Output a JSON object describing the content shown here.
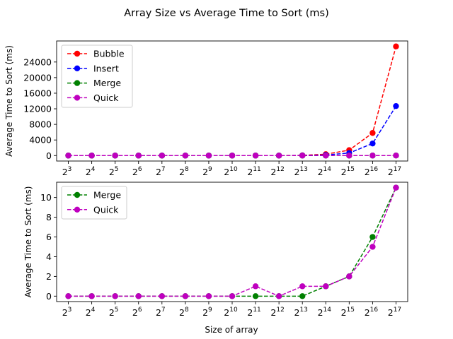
{
  "figure": {
    "title": "Array Size vs Average Time to Sort (ms)",
    "xlabel": "Size of array"
  },
  "colors": {
    "Bubble": "#ff0000",
    "Insert": "#0000ff",
    "Merge": "#008000",
    "Quick": "#bf00bf"
  },
  "chart_data": [
    {
      "type": "line",
      "line_style": "dashed",
      "marker": "circle",
      "categories": [
        "2^3",
        "2^4",
        "2^5",
        "2^6",
        "2^7",
        "2^8",
        "2^9",
        "2^10",
        "2^11",
        "2^12",
        "2^13",
        "2^14",
        "2^15",
        "2^16",
        "2^17"
      ],
      "x_exponents": [
        3,
        4,
        5,
        6,
        7,
        8,
        9,
        10,
        11,
        12,
        13,
        14,
        15,
        16,
        17
      ],
      "ylabel": "Average Time to Sort (ms)",
      "ylim": [
        -1400,
        29400
      ],
      "yticks": [
        0,
        4000,
        8000,
        12000,
        16000,
        20000,
        24000
      ],
      "legend_position": "top-left",
      "grid": false,
      "series": [
        {
          "name": "Bubble",
          "values": [
            0,
            0,
            0,
            0,
            0,
            0,
            0,
            0,
            0,
            0,
            50,
            350,
            1400,
            5800,
            28000
          ]
        },
        {
          "name": "Insert",
          "values": [
            0,
            0,
            0,
            0,
            0,
            0,
            0,
            0,
            0,
            0,
            30,
            150,
            650,
            3100,
            12700
          ]
        },
        {
          "name": "Merge",
          "values": [
            0,
            0,
            0,
            0,
            0,
            0,
            0,
            0,
            0,
            0,
            0,
            1,
            2,
            6,
            11
          ]
        },
        {
          "name": "Quick",
          "values": [
            0,
            0,
            0,
            0,
            0,
            0,
            0,
            0,
            1,
            0,
            1,
            1,
            2,
            5,
            11
          ]
        }
      ]
    },
    {
      "type": "line",
      "line_style": "dashed",
      "marker": "circle",
      "categories": [
        "2^3",
        "2^4",
        "2^5",
        "2^6",
        "2^7",
        "2^8",
        "2^9",
        "2^10",
        "2^11",
        "2^12",
        "2^13",
        "2^14",
        "2^15",
        "2^16",
        "2^17"
      ],
      "x_exponents": [
        3,
        4,
        5,
        6,
        7,
        8,
        9,
        10,
        11,
        12,
        13,
        14,
        15,
        16,
        17
      ],
      "xlabel": "Size of array",
      "ylabel": "Average Time to Sort (ms)",
      "ylim": [
        -0.55,
        11.55
      ],
      "yticks": [
        0,
        2,
        4,
        6,
        8,
        10
      ],
      "legend_position": "top-left",
      "grid": false,
      "series": [
        {
          "name": "Merge",
          "values": [
            0,
            0,
            0,
            0,
            0,
            0,
            0,
            0,
            0,
            0,
            0,
            1,
            2,
            6,
            11
          ]
        },
        {
          "name": "Quick",
          "values": [
            0,
            0,
            0,
            0,
            0,
            0,
            0,
            0,
            1,
            0,
            1,
            1,
            2,
            5,
            11
          ]
        }
      ]
    }
  ]
}
